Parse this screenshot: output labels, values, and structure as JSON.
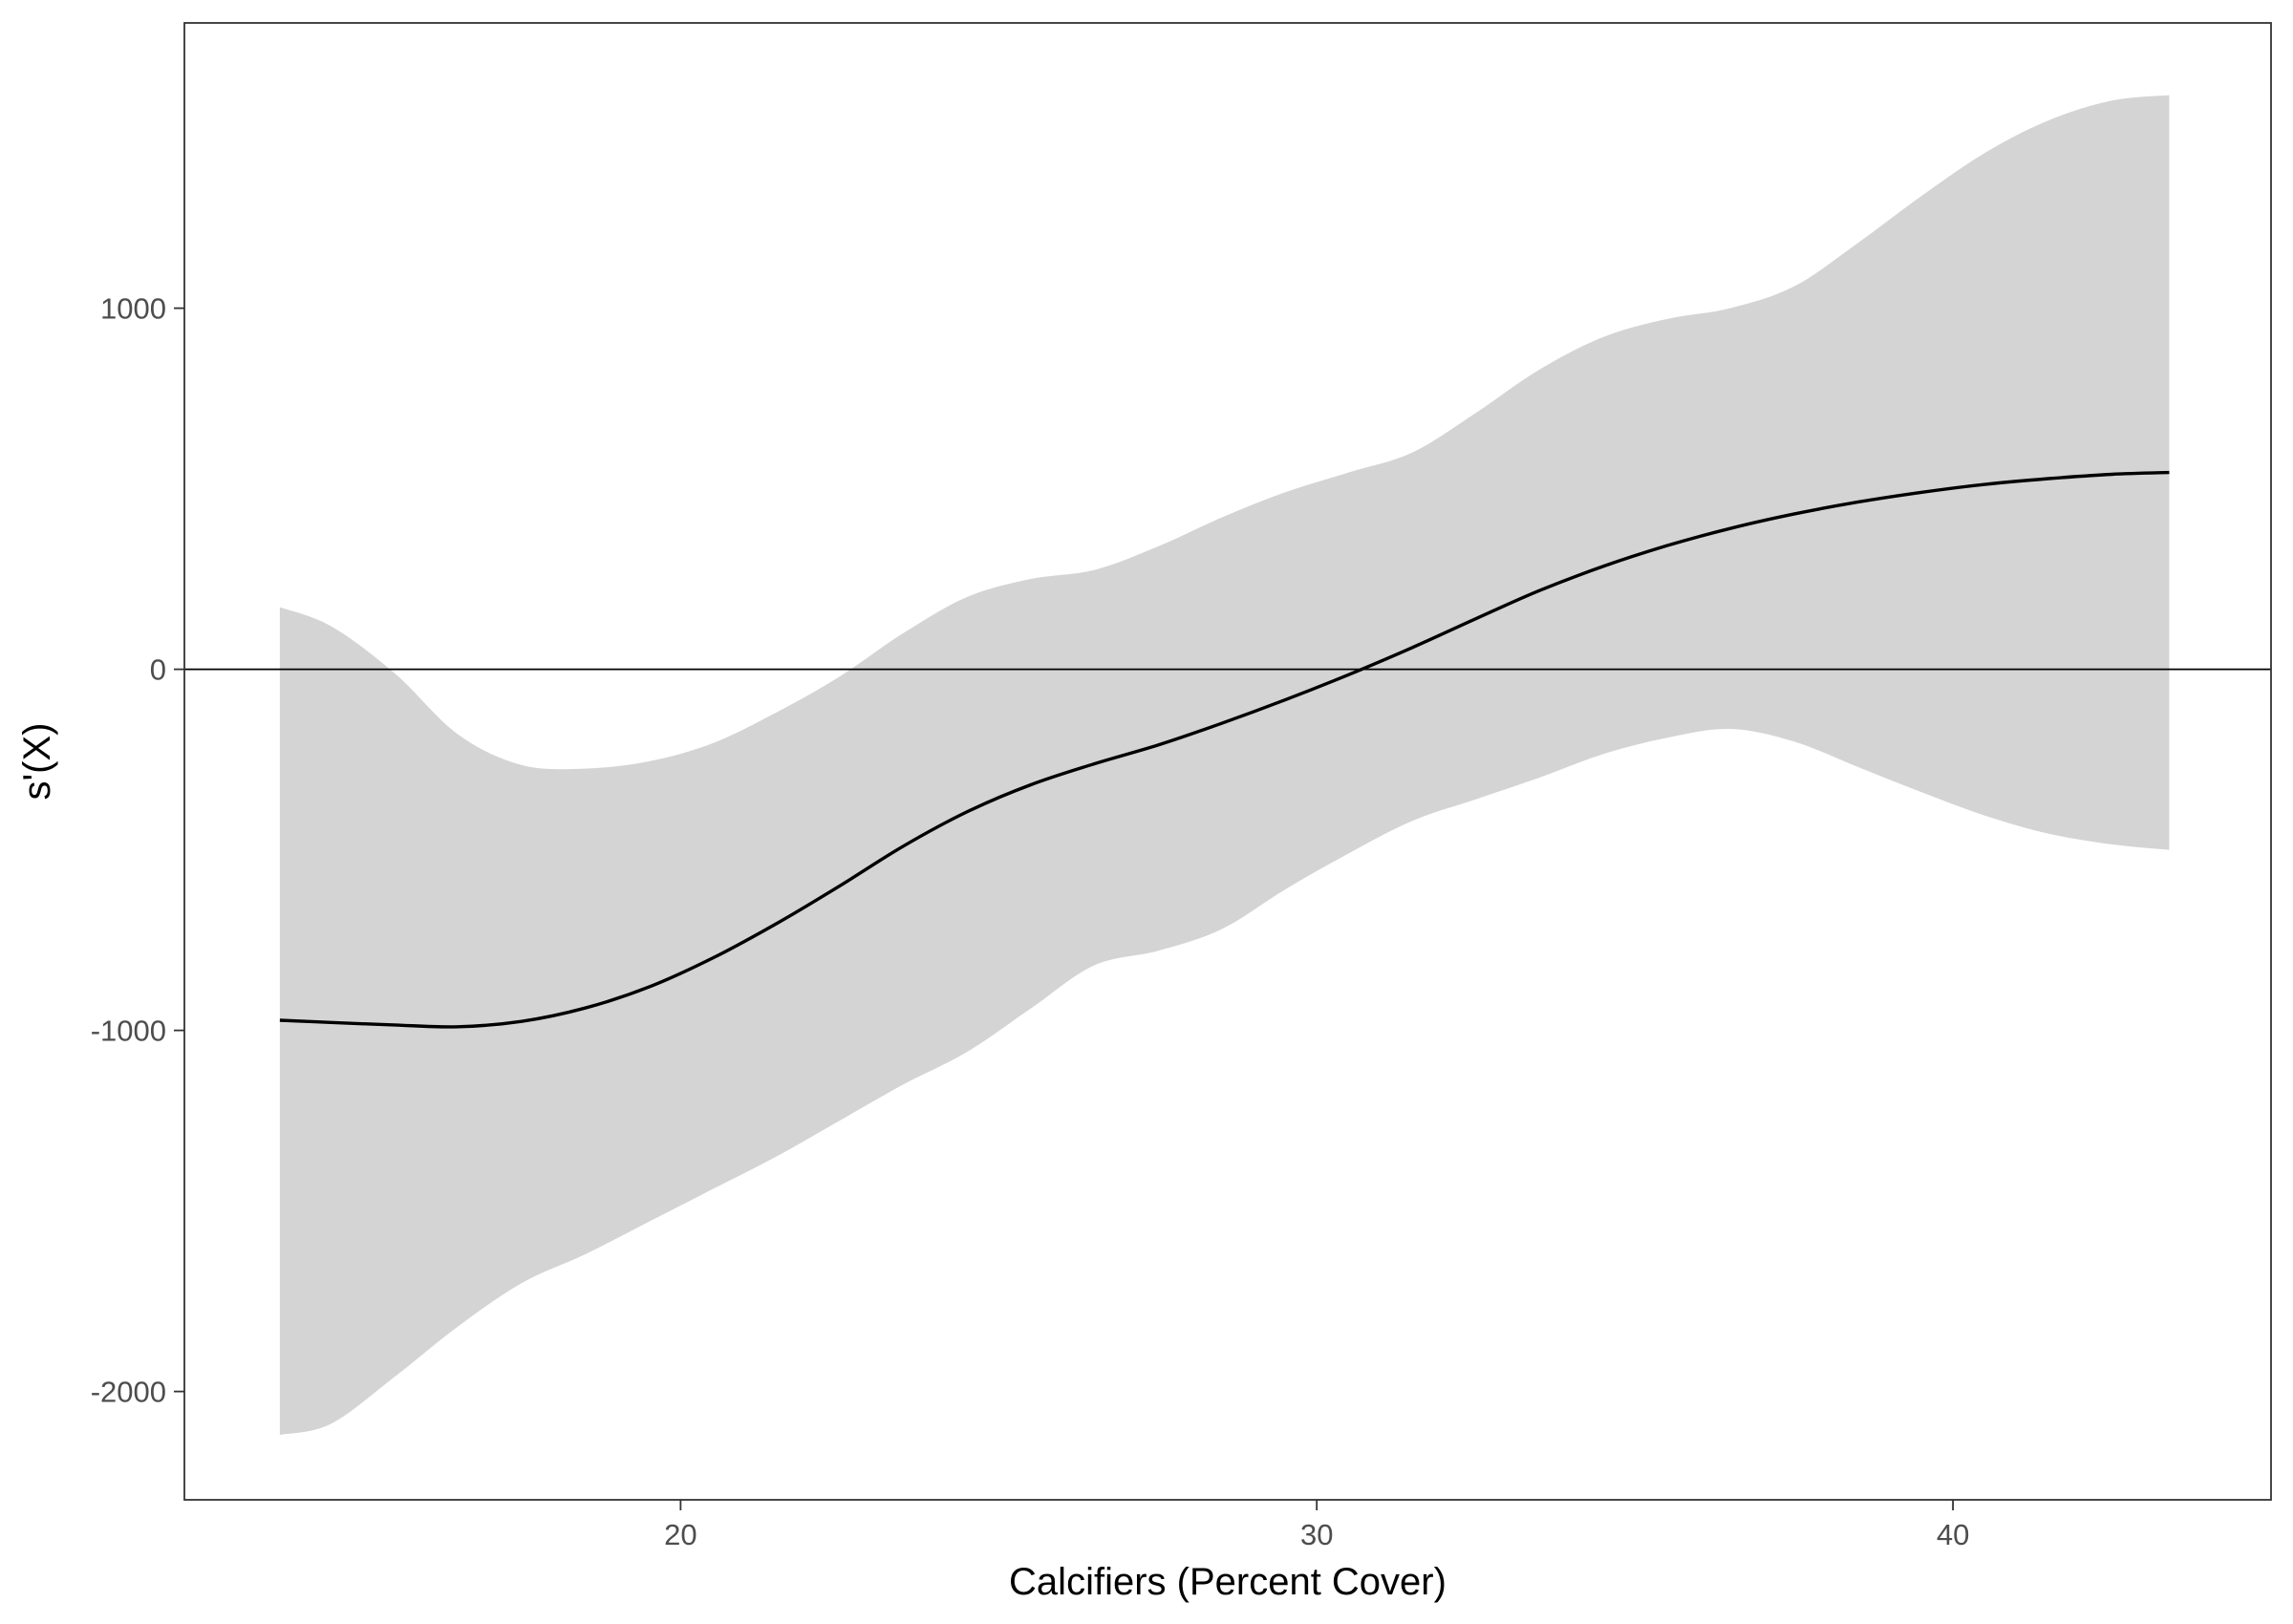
{
  "chart_data": {
    "type": "line",
    "title": "",
    "xlabel": "Calcifiers (Percent Cover)",
    "ylabel": "s'(X)",
    "xlim": [
      12.2,
      45.0
    ],
    "ylim": [
      -2300,
      1790
    ],
    "x_ticks": [
      20,
      30,
      40
    ],
    "y_ticks": [
      -2000,
      -1000,
      0,
      1000
    ],
    "x_tick_labels": [
      "20",
      "30",
      "40"
    ],
    "y_tick_labels": [
      "-2000",
      "-1000",
      "0",
      "1000"
    ],
    "grid": false,
    "hline": 0,
    "colors": {
      "line": "#000000",
      "ribbon": "#d4d4d4",
      "frame": "#333333"
    },
    "series": [
      {
        "x": [
          13.7,
          14.5,
          15.5,
          16.5,
          17.5,
          18.5,
          19.5,
          20.5,
          21.5,
          22.5,
          23.5,
          24.5,
          25.5,
          26.5,
          27.5,
          28.5,
          29.5,
          30.5,
          31.5,
          32.5,
          33.5,
          34.5,
          35.5,
          36.5,
          37.5,
          38.5,
          39.5,
          40.5,
          41.5,
          42.5,
          43.4
        ],
        "y": [
          -972,
          -978,
          -985,
          -990,
          -975,
          -938,
          -880,
          -800,
          -705,
          -600,
          -490,
          -395,
          -320,
          -262,
          -210,
          -150,
          -85,
          -15,
          60,
          140,
          218,
          285,
          342,
          390,
          430,
          463,
          490,
          512,
          528,
          540,
          545
        ],
        "upper": [
          172,
          120,
          -10,
          -180,
          -265,
          -275,
          -255,
          -205,
          -120,
          -20,
          100,
          200,
          250,
          275,
          340,
          420,
          490,
          545,
          600,
          710,
          830,
          920,
          970,
          1000,
          1060,
          1180,
          1310,
          1430,
          1520,
          1575,
          1590
        ],
        "lower": [
          -2120,
          -2090,
          -1960,
          -1820,
          -1700,
          -1620,
          -1530,
          -1440,
          -1350,
          -1250,
          -1150,
          -1060,
          -940,
          -820,
          -780,
          -720,
          -610,
          -510,
          -420,
          -360,
          -300,
          -235,
          -190,
          -165,
          -200,
          -270,
          -340,
          -405,
          -455,
          -485,
          -500
        ]
      }
    ]
  }
}
